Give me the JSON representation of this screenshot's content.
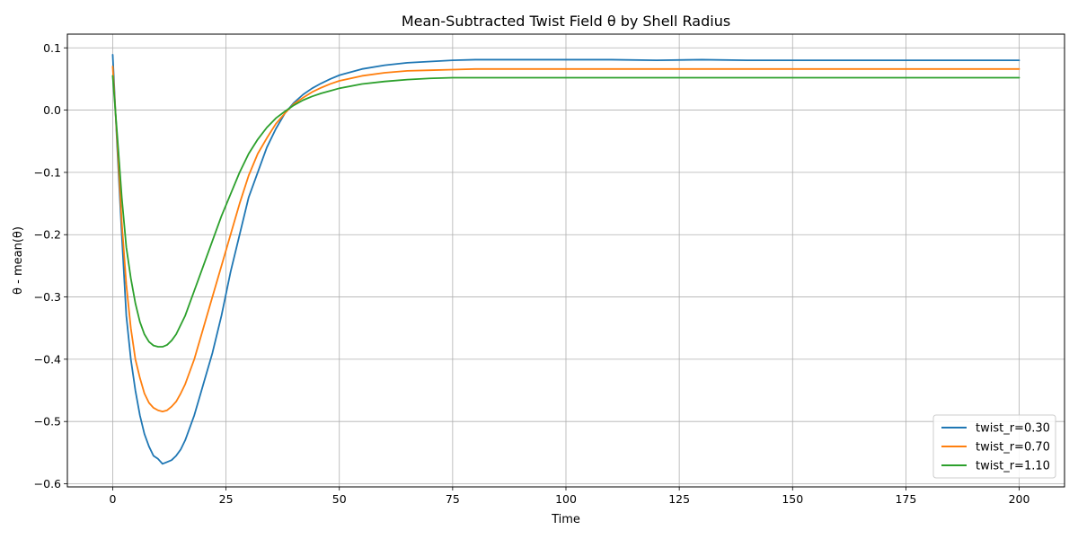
{
  "chart_data": {
    "type": "line",
    "title": "Mean-Subtracted Twist Field θ by Shell Radius",
    "xlabel": "Time",
    "ylabel": "θ - mean(θ)",
    "xlim": [
      -10,
      210
    ],
    "ylim": [
      -0.605,
      0.122
    ],
    "xticks": [
      0,
      25,
      50,
      75,
      100,
      125,
      150,
      175,
      200
    ],
    "yticks": [
      -0.6,
      -0.5,
      -0.4,
      -0.3,
      -0.2,
      -0.1,
      0.0,
      0.1
    ],
    "yticklabels": [
      "−0.6",
      "−0.5",
      "−0.4",
      "−0.3",
      "−0.2",
      "−0.1",
      "0.0",
      "0.1"
    ],
    "grid": true,
    "legend_position": "bottom-right",
    "series": [
      {
        "name": "twist_r=0.30",
        "color": "#1f77b4",
        "x": [
          0,
          1,
          2,
          3,
          4,
          5,
          6,
          7,
          8,
          9,
          10,
          11,
          12,
          13,
          14,
          15,
          16,
          17,
          18,
          19,
          20,
          22,
          24,
          26,
          28,
          30,
          32,
          34,
          36,
          38,
          40,
          42,
          44,
          46,
          48,
          50,
          55,
          60,
          65,
          70,
          75,
          80,
          90,
          100,
          110,
          120,
          130,
          140,
          150,
          160,
          170,
          180,
          190,
          200
        ],
        "y": [
          0.089,
          -0.06,
          -0.2,
          -0.33,
          -0.4,
          -0.45,
          -0.49,
          -0.52,
          -0.54,
          -0.555,
          -0.56,
          -0.568,
          -0.565,
          -0.562,
          -0.555,
          -0.545,
          -0.53,
          -0.51,
          -0.49,
          -0.465,
          -0.44,
          -0.39,
          -0.33,
          -0.26,
          -0.2,
          -0.14,
          -0.1,
          -0.06,
          -0.03,
          -0.005,
          0.012,
          0.025,
          0.035,
          0.043,
          0.05,
          0.056,
          0.066,
          0.072,
          0.076,
          0.078,
          0.08,
          0.081,
          0.081,
          0.081,
          0.081,
          0.08,
          0.081,
          0.08,
          0.08,
          0.08,
          0.08,
          0.08,
          0.08,
          0.08
        ]
      },
      {
        "name": "twist_r=0.70",
        "color": "#ff7f0e",
        "x": [
          0,
          1,
          2,
          3,
          4,
          5,
          6,
          7,
          8,
          9,
          10,
          11,
          12,
          13,
          14,
          15,
          16,
          17,
          18,
          19,
          20,
          22,
          24,
          26,
          28,
          30,
          32,
          34,
          36,
          38,
          40,
          42,
          44,
          46,
          48,
          50,
          55,
          60,
          65,
          70,
          75,
          80,
          90,
          100,
          110,
          120,
          130,
          140,
          150,
          160,
          170,
          180,
          190,
          200
        ],
        "y": [
          0.07,
          -0.05,
          -0.18,
          -0.28,
          -0.35,
          -0.4,
          -0.43,
          -0.455,
          -0.47,
          -0.478,
          -0.482,
          -0.484,
          -0.482,
          -0.476,
          -0.468,
          -0.455,
          -0.44,
          -0.42,
          -0.4,
          -0.375,
          -0.35,
          -0.3,
          -0.25,
          -0.2,
          -0.15,
          -0.105,
          -0.07,
          -0.045,
          -0.022,
          -0.005,
          0.01,
          0.02,
          0.029,
          0.036,
          0.042,
          0.047,
          0.055,
          0.06,
          0.063,
          0.064,
          0.065,
          0.066,
          0.066,
          0.066,
          0.066,
          0.066,
          0.066,
          0.066,
          0.066,
          0.066,
          0.066,
          0.066,
          0.066,
          0.066
        ]
      },
      {
        "name": "twist_r=1.10",
        "color": "#2ca02c",
        "x": [
          0,
          1,
          2,
          3,
          4,
          5,
          6,
          7,
          8,
          9,
          10,
          11,
          12,
          13,
          14,
          15,
          16,
          17,
          18,
          19,
          20,
          22,
          24,
          26,
          28,
          30,
          32,
          34,
          36,
          38,
          40,
          42,
          44,
          46,
          48,
          50,
          55,
          60,
          65,
          70,
          75,
          80,
          90,
          100,
          110,
          120,
          130,
          140,
          150,
          160,
          170,
          180,
          190,
          200
        ],
        "y": [
          0.055,
          -0.04,
          -0.14,
          -0.22,
          -0.27,
          -0.31,
          -0.34,
          -0.36,
          -0.372,
          -0.378,
          -0.38,
          -0.38,
          -0.377,
          -0.37,
          -0.36,
          -0.345,
          -0.33,
          -0.31,
          -0.29,
          -0.27,
          -0.25,
          -0.21,
          -0.17,
          -0.135,
          -0.1,
          -0.07,
          -0.047,
          -0.028,
          -0.013,
          -0.002,
          0.008,
          0.016,
          0.022,
          0.027,
          0.031,
          0.035,
          0.042,
          0.046,
          0.049,
          0.051,
          0.052,
          0.052,
          0.052,
          0.052,
          0.052,
          0.052,
          0.052,
          0.052,
          0.052,
          0.052,
          0.052,
          0.052,
          0.052,
          0.052
        ]
      }
    ]
  }
}
